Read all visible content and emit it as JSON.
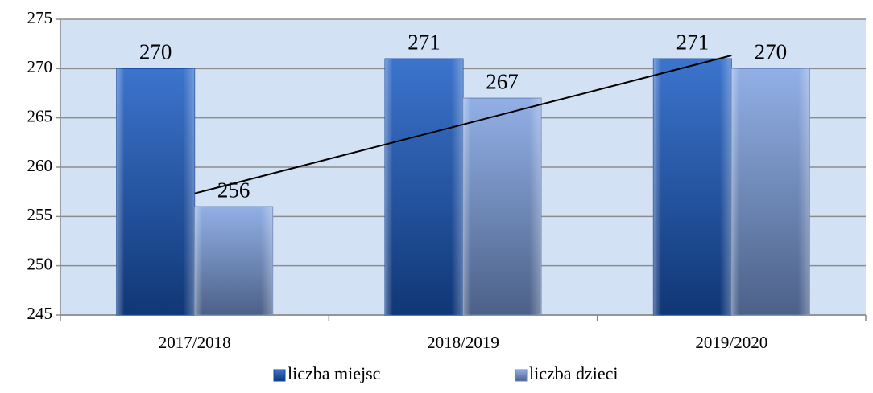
{
  "chart_data": {
    "type": "bar",
    "categories": [
      "2017/2018",
      "2018/2019",
      "2019/2020"
    ],
    "series": [
      {
        "name": "liczba miejsc",
        "color": "#1a5cc4",
        "values": [
          270,
          271,
          271
        ]
      },
      {
        "name": "liczba dzieci",
        "color": "#7fa2e2",
        "values": [
          256,
          267,
          270
        ]
      }
    ],
    "ylim": [
      245,
      275
    ],
    "yticks": [
      245,
      250,
      255,
      260,
      265,
      270,
      275
    ],
    "grid": true,
    "legend": "bottom",
    "trendline": {
      "series": 1
    }
  }
}
